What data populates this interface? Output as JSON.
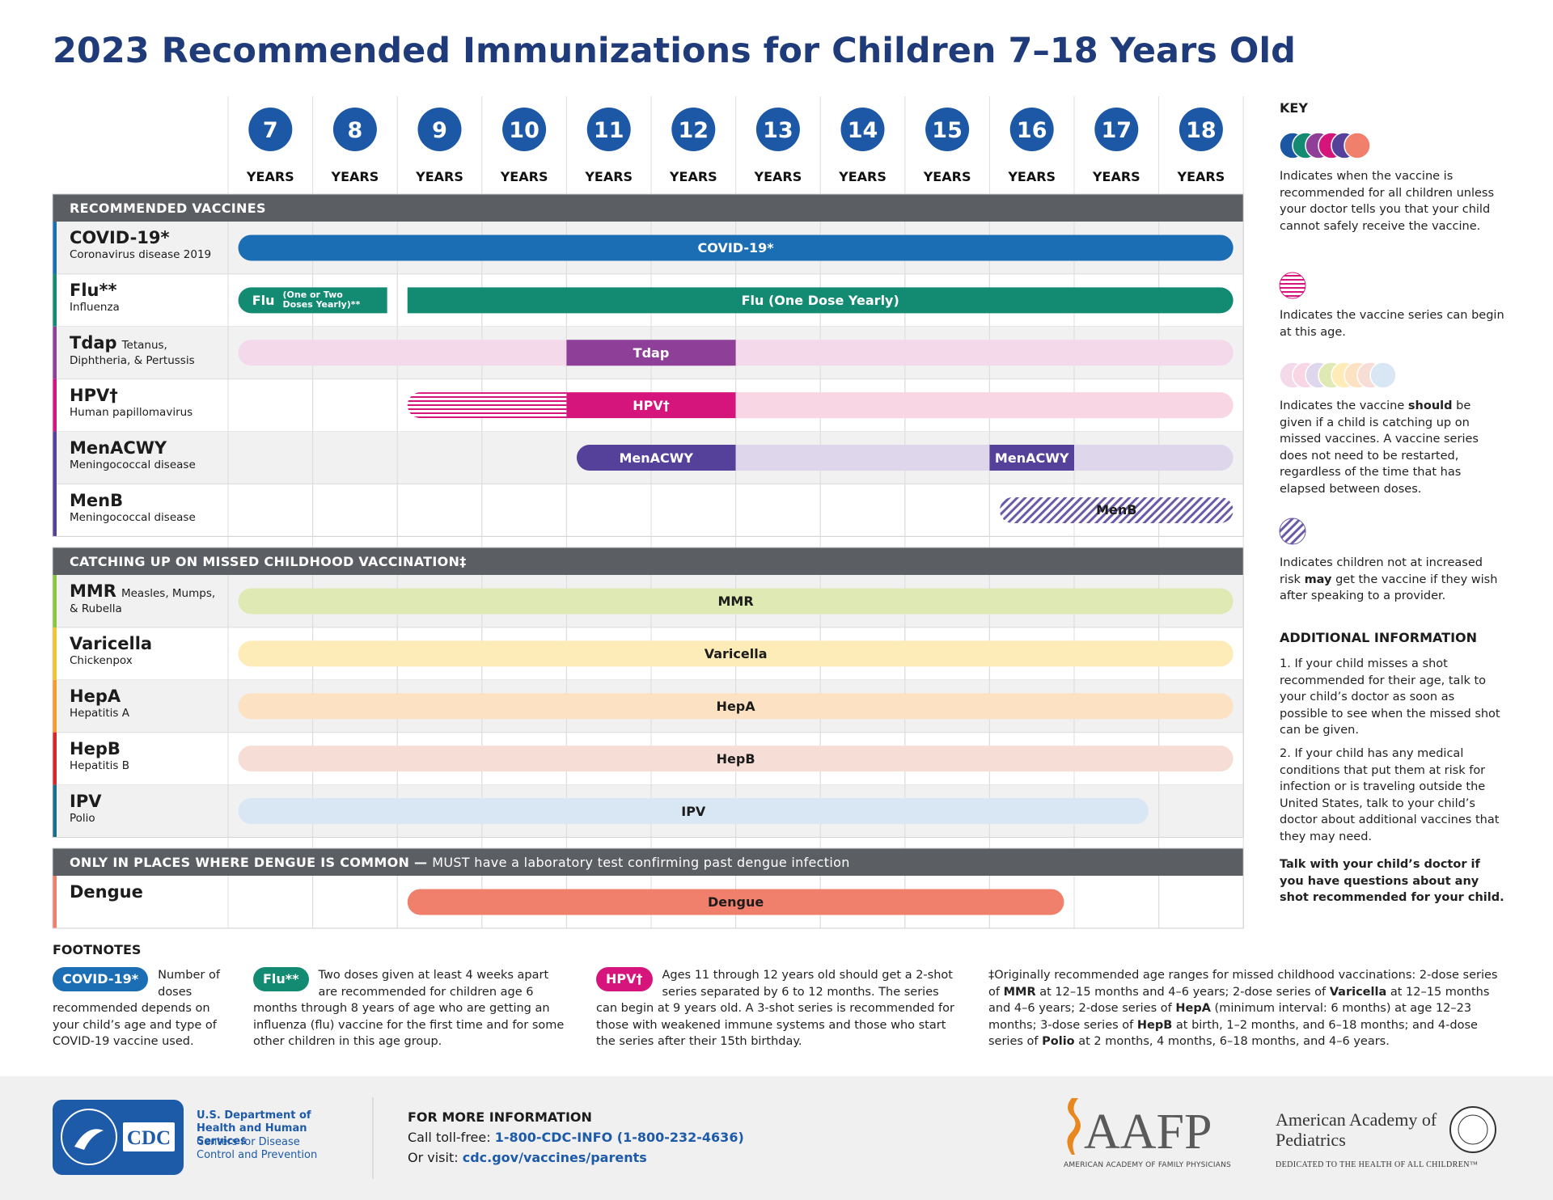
{
  "title": "2023 Recommended Immunizations for Children 7–18 Years Old",
  "ages": [
    7,
    8,
    9,
    10,
    11,
    12,
    13,
    14,
    15,
    16,
    17,
    18
  ],
  "age_unit": "YEARS",
  "sections": [
    {
      "header": "RECOMMENDED VACCINES",
      "rows": [
        {
          "name": "COVID-19*",
          "description": "Coronavirus disease 2019",
          "bar_labels": [
            "COVID-19*"
          ]
        },
        {
          "name": "Flu**",
          "description": "Influenza",
          "bar_labels": [
            "Flu",
            "(One or Two Doses Yearly)**",
            "Flu (One Dose Yearly)"
          ]
        },
        {
          "name": "Tdap",
          "description": "Tetanus, Diphtheria, & Pertussis",
          "bar_labels": [
            "Tdap"
          ]
        },
        {
          "name": "HPV†",
          "description": "Human papillomavirus",
          "bar_labels": [
            "HPV†"
          ]
        },
        {
          "name": "MenACWY",
          "description": "Meningococcal disease",
          "bar_labels": [
            "MenACWY",
            "MenACWY"
          ]
        },
        {
          "name": "MenB",
          "description": "Meningococcal disease",
          "bar_labels": [
            "MenB"
          ]
        }
      ]
    },
    {
      "header": "CATCHING UP ON MISSED CHILDHOOD VACCINATION‡",
      "rows": [
        {
          "name": "MMR",
          "description": "Measles, Mumps, & Rubella",
          "bar_labels": [
            "MMR"
          ]
        },
        {
          "name": "Varicella",
          "description": "Chickenpox",
          "bar_labels": [
            "Varicella"
          ]
        },
        {
          "name": "HepA",
          "description": "Hepatitis A",
          "bar_labels": [
            "HepA"
          ]
        },
        {
          "name": "HepB",
          "description": "Hepatitis B",
          "bar_labels": [
            "HepB"
          ]
        },
        {
          "name": "IPV",
          "description": "Polio",
          "bar_labels": [
            "IPV"
          ]
        }
      ]
    },
    {
      "header": "ONLY IN PLACES WHERE DENGUE IS COMMON —",
      "header_note": "MUST have a laboratory test confirming past dengue infection",
      "rows": [
        {
          "name": "Dengue",
          "description": null,
          "bar_labels": [
            "Dengue"
          ]
        }
      ]
    }
  ],
  "key": {
    "title": "KEY",
    "items": [
      [
        "Indicates when the vaccine is recommended for all children unless your doctor tells you that your child cannot safely receive the vaccine."
      ],
      [
        "Indicates the vaccine series can begin at this age."
      ],
      [
        "Indicates the vaccine ",
        "should",
        " be given if a child is catching up on missed vaccines. A vaccine series does not need to be restarted, regardless of the time that has elapsed between doses."
      ],
      [
        "Indicates children not at increased risk ",
        "may",
        " get the vaccine if they wish after speaking to a provider."
      ]
    ]
  },
  "additional_info": {
    "title": "ADDITIONAL INFORMATION",
    "items": [
      "1. If your child misses a shot recommended for their age, talk to your child’s doctor as soon as possible to see when the missed shot can be given.",
      "2. If your child has any medical conditions that put them at risk for infection or is traveling outside the United States, talk to your child’s doctor about additional vaccines that they may need."
    ],
    "closing": "Talk with your child’s doctor if you have questions about any shot recommended for your child."
  },
  "footnotes": {
    "title": "FOOTNOTES",
    "items": [
      {
        "badge": "COVID-19*",
        "text": "Number of doses recommended depends on your child’s age and type of COVID-19 vaccine used."
      },
      {
        "badge": "Flu**",
        "text": "Two doses given at least 4 weeks apart are recommended for children age 6 months through 8 years of age who are getting an influenza (flu) vaccine for the first time and for some other children in this age group."
      },
      {
        "badge": "HPV†",
        "text": "Ages 11 through 12 years old should get a 2-shot series separated by 6 to 12 months. The series can begin at 9 years old. A 3-shot series is recommended for those with weakened immune systems and those who start the series after their 15th birthday."
      }
    ],
    "catch_up_note": [
      "‡Originally recommended age ranges for missed childhood vaccinations: 2-dose series of ",
      "MMR",
      " at 12–15 months and 4–6 years; 2-dose series of ",
      "Varicella",
      " at 12–15 months and 4–6 years; 2-dose series of ",
      "HepA",
      " (minimum interval: 6 months) at age 12–23 months; 3-dose series of ",
      "HepB",
      " at birth, 1–2 months, and 6–18 months; and 4-dose series of ",
      "Polio",
      " at 2 months, 4 months, 6–18 months, and 4–6 years."
    ]
  },
  "footer": {
    "cdc_logo": "CDC",
    "hhs": "U.S. Department of Health and Human Services",
    "cdc": "Centers for Disease Control and Prevention",
    "more_info_title": "FOR MORE INFORMATION",
    "call_label": "Call toll-free:",
    "phone": "1-800-CDC-INFO (1-800-232-4636)",
    "visit_label": "Or visit:",
    "url": "cdc.gov/vaccines/parents",
    "aafp": "AAFP",
    "aafp_full": "AMERICAN ACADEMY OF FAMILY PHYSICIANS",
    "aap": "American Academy of Pediatrics",
    "aap_tagline": "DEDICATED TO THE HEALTH OF ALL CHILDREN™"
  }
}
